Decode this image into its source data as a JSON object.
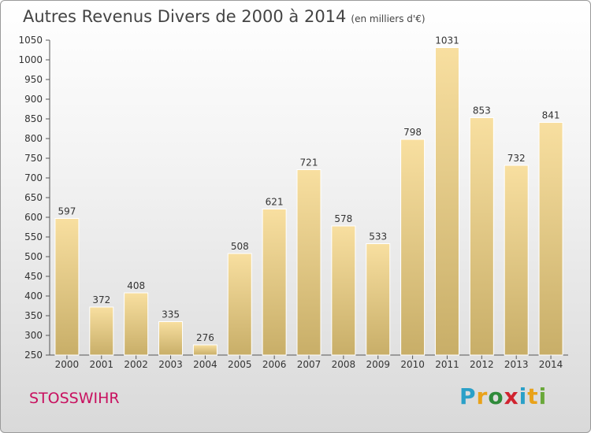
{
  "header": {
    "title": "Autres Revenus Divers de 2000 à 2014",
    "unit": "(en milliers d'€)"
  },
  "footer": {
    "city": "STOSSWIHR"
  },
  "logo": {
    "letters": [
      {
        "ch": "P",
        "color": "#2aa0c8"
      },
      {
        "ch": "r",
        "color": "#e9a21a"
      },
      {
        "ch": "o",
        "color": "#2f8a3a"
      },
      {
        "ch": "x",
        "color": "#d0232f"
      },
      {
        "ch": "i",
        "color": "#2aa0c8"
      },
      {
        "ch": "t",
        "color": "#e9a21a"
      },
      {
        "ch": "i",
        "color": "#6aa83a"
      }
    ]
  },
  "colors": {
    "bar_light": "#f8dfa0",
    "bar_dark": "#c8ae68",
    "title": "#444444",
    "city": "#c8105f"
  },
  "chart_data": {
    "type": "bar",
    "title": "Autres Revenus Divers de 2000 à 2014",
    "subtitle": "(en milliers d'€)",
    "xlabel": "",
    "ylabel": "",
    "categories": [
      "2000",
      "2001",
      "2002",
      "2003",
      "2004",
      "2005",
      "2006",
      "2007",
      "2008",
      "2009",
      "2010",
      "2011",
      "2012",
      "2013",
      "2014"
    ],
    "values": [
      597,
      372,
      408,
      335,
      276,
      508,
      621,
      721,
      578,
      533,
      798,
      1031,
      853,
      732,
      841
    ],
    "ylim": [
      250,
      1050
    ],
    "yticks": [
      250,
      300,
      350,
      400,
      450,
      500,
      550,
      600,
      650,
      700,
      750,
      800,
      850,
      900,
      950,
      1000,
      1050
    ],
    "grid": false,
    "legend": "none"
  }
}
